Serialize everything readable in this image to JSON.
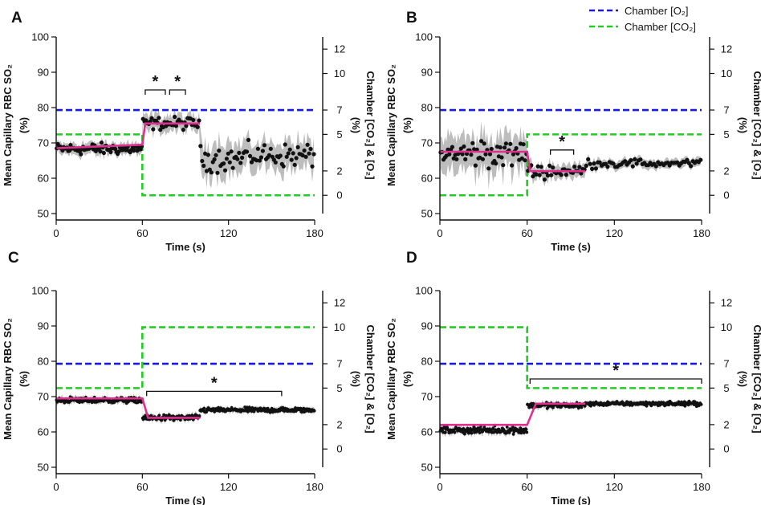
{
  "chart_data": [
    {
      "panel": "A",
      "type": "line",
      "xlabel": "Time (s)",
      "ylabel": "Mean Capillary RBC SO₂",
      "ylabel_unit": "(%)",
      "y2label": "Chamber [CO₂] & [O₂]",
      "y2label_unit": "(%)",
      "xlim": [
        0,
        180
      ],
      "xticks": [
        "0",
        "60",
        "120",
        "180"
      ],
      "ylim": [
        50,
        100
      ],
      "yticks": [
        "50",
        "60",
        "70",
        "80",
        "90",
        "100"
      ],
      "y2lim": [
        -1.5,
        13
      ],
      "y2ticks": [
        "0",
        "2",
        "5",
        "7",
        "10",
        "12"
      ],
      "o2_chamber": {
        "x": [
          0,
          180
        ],
        "y": [
          7,
          7
        ]
      },
      "co2_chamber": {
        "x": [
          0,
          60,
          60,
          180
        ],
        "y": [
          5,
          5,
          0,
          0
        ]
      },
      "mean_fit": {
        "x": [
          0,
          60,
          62,
          100
        ],
        "y": [
          68.5,
          69.5,
          75.5,
          75.5
        ]
      },
      "so2_series": {
        "segments": [
          {
            "t0": 0,
            "t1": 60,
            "mean": 68.3,
            "noise": 1.4,
            "band": 1.6,
            "n": 75
          },
          {
            "t0": 60,
            "t1": 100,
            "mean": 75.5,
            "noise": 1.5,
            "band": 2.2,
            "n": 40
          },
          {
            "t0": 100,
            "t1": 130,
            "mean": 65.5,
            "noise": 3.0,
            "band": 4.5,
            "n": 28
          },
          {
            "t0": 130,
            "t1": 180,
            "mean": 66.5,
            "noise": 2.8,
            "band": 4.0,
            "n": 45
          }
        ]
      },
      "significance": [
        {
          "x0": 62,
          "x1": 76,
          "y": 85,
          "label": "*"
        },
        {
          "x0": 79,
          "x1": 90,
          "y": 85,
          "label": "*"
        }
      ]
    },
    {
      "panel": "B",
      "type": "line",
      "xlabel": "Time (s)",
      "ylabel": "Mean Capillary RBC SO₂",
      "ylabel_unit": "(%)",
      "y2label": "Chamber [CO₂] & [O₂]",
      "y2label_unit": "(%)",
      "xlim": [
        0,
        180
      ],
      "xticks": [
        "0",
        "60",
        "120",
        "180"
      ],
      "ylim": [
        50,
        100
      ],
      "yticks": [
        "50",
        "60",
        "70",
        "80",
        "90",
        "100"
      ],
      "y2lim": [
        -1.5,
        13
      ],
      "y2ticks": [
        "0",
        "2",
        "5",
        "7",
        "10",
        "12"
      ],
      "o2_chamber": {
        "x": [
          0,
          180
        ],
        "y": [
          7,
          7
        ]
      },
      "co2_chamber": {
        "x": [
          0,
          60,
          60,
          180
        ],
        "y": [
          0,
          0,
          5,
          5
        ]
      },
      "mean_fit": {
        "x": [
          0,
          60,
          62,
          100
        ],
        "y": [
          67.5,
          67.5,
          62,
          62
        ]
      },
      "so2_series": {
        "segments": [
          {
            "t0": 0,
            "t1": 60,
            "mean": 67,
            "noise": 3.5,
            "band": 4.8,
            "n": 60
          },
          {
            "t0": 60,
            "t1": 100,
            "mean": 62,
            "noise": 1.6,
            "band": 2.0,
            "n": 35
          },
          {
            "t0": 100,
            "t1": 180,
            "mean": 64.2,
            "noise": 1.0,
            "band": 1.3,
            "n": 60
          }
        ]
      },
      "significance": [
        {
          "x0": 76,
          "x1": 92,
          "y": 68,
          "label": "*"
        }
      ]
    },
    {
      "panel": "C",
      "type": "line",
      "xlabel": "Time (s)",
      "ylabel": "Mean Capillary RBC SO₂",
      "ylabel_unit": "(%)",
      "y2label": "Chamber [CO₂] & [O₂]",
      "y2label_unit": "(%)",
      "xlim": [
        0,
        180
      ],
      "xticks": [
        "0",
        "60",
        "120",
        "180"
      ],
      "ylim": [
        50,
        100
      ],
      "yticks": [
        "50",
        "60",
        "70",
        "80",
        "90",
        "100"
      ],
      "y2lim": [
        -1.5,
        13
      ],
      "y2ticks": [
        "0",
        "2",
        "5",
        "7",
        "10",
        "12"
      ],
      "o2_chamber": {
        "x": [
          0,
          180
        ],
        "y": [
          7,
          7
        ]
      },
      "co2_chamber": {
        "x": [
          0,
          60,
          60,
          180
        ],
        "y": [
          5,
          5,
          10,
          10
        ]
      },
      "mean_fit": {
        "x": [
          0,
          60,
          64,
          100
        ],
        "y": [
          69.5,
          69.5,
          64,
          64
        ]
      },
      "so2_series": {
        "segments": [
          {
            "t0": 0,
            "t1": 60,
            "mean": 69,
            "noise": 0.7,
            "band": 0.9,
            "n": 150
          },
          {
            "t0": 60,
            "t1": 100,
            "mean": 64,
            "noise": 0.7,
            "band": 0.9,
            "n": 100
          },
          {
            "t0": 100,
            "t1": 180,
            "mean": 66.2,
            "noise": 0.6,
            "band": 0.8,
            "n": 200
          }
        ]
      },
      "significance": [
        {
          "x0": 63,
          "x1": 157,
          "y": 71.5,
          "label": "*"
        }
      ]
    },
    {
      "panel": "D",
      "type": "line",
      "xlabel": "Time (s)",
      "ylabel": "Mean Capillary RBC SO₂",
      "ylabel_unit": "(%)",
      "y2label": "Chamber [CO₂] & [O₂]",
      "y2label_unit": "(%)",
      "xlim": [
        0,
        180
      ],
      "xticks": [
        "0",
        "60",
        "120",
        "180"
      ],
      "ylim": [
        50,
        100
      ],
      "yticks": [
        "50",
        "60",
        "70",
        "80",
        "90",
        "100"
      ],
      "y2lim": [
        -1.5,
        13
      ],
      "y2ticks": [
        "0",
        "2",
        "5",
        "7",
        "10",
        "12"
      ],
      "o2_chamber": {
        "x": [
          0,
          180
        ],
        "y": [
          7,
          7
        ]
      },
      "co2_chamber": {
        "x": [
          0,
          60,
          60,
          180
        ],
        "y": [
          10,
          10,
          5,
          5
        ]
      },
      "mean_fit": {
        "x": [
          0,
          60,
          66,
          100
        ],
        "y": [
          62,
          62,
          68,
          68
        ]
      },
      "so2_series": {
        "segments": [
          {
            "t0": 0,
            "t1": 60,
            "mean": 60.5,
            "noise": 0.8,
            "band": 1.0,
            "n": 150
          },
          {
            "t0": 60,
            "t1": 100,
            "mean": 67.5,
            "noise": 0.7,
            "band": 0.9,
            "n": 100
          },
          {
            "t0": 100,
            "t1": 180,
            "mean": 68,
            "noise": 0.5,
            "band": 0.7,
            "n": 200
          }
        ]
      },
      "significance": [
        {
          "x0": 62,
          "x1": 180,
          "y": 75,
          "label": "*"
        }
      ]
    }
  ],
  "legend": {
    "entries": [
      {
        "label": "Chamber [O₂]",
        "color": "#1a1adb"
      },
      {
        "label": "Chamber [CO₂]",
        "color": "#22cc22"
      }
    ]
  },
  "colors": {
    "o2": "#1a1adb",
    "co2": "#22cc22",
    "fit": "#e0308f",
    "points": "#111111",
    "band": "#bdbdbd"
  }
}
